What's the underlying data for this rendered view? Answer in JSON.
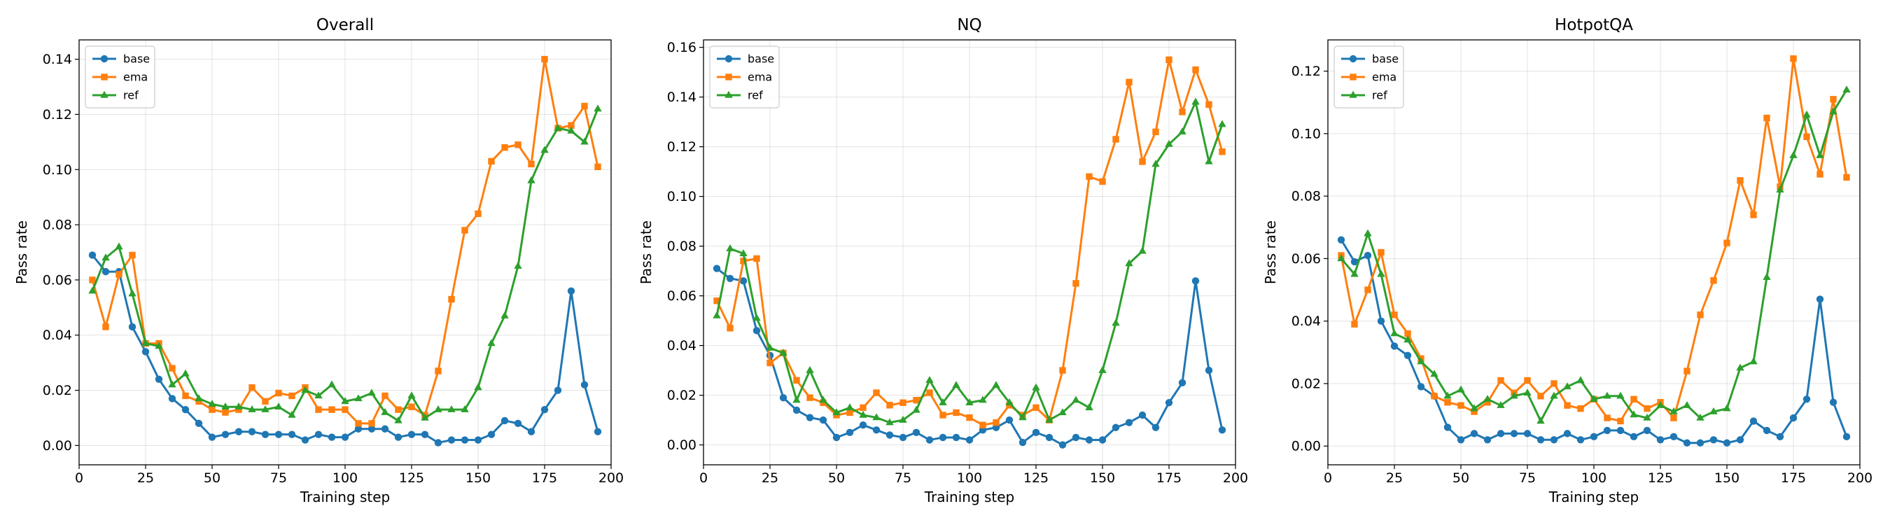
{
  "colors": {
    "base": "#1f77b4",
    "ema": "#ff7f0e",
    "ref": "#2ca02c",
    "grid": "#b0b0b0"
  },
  "chart_data": [
    {
      "type": "line",
      "title": "Overall",
      "xlabel": "Training step",
      "ylabel": "Pass rate",
      "xlim": [
        0,
        200
      ],
      "ylim": [
        -0.007,
        0.147
      ],
      "xticks": [
        0,
        25,
        50,
        75,
        100,
        125,
        150,
        175,
        200
      ],
      "yticks": [
        0.0,
        0.02,
        0.04,
        0.06,
        0.08,
        0.1,
        0.12,
        0.14
      ],
      "grid": true,
      "legend": "top-left",
      "x": [
        5,
        10,
        15,
        20,
        25,
        30,
        35,
        40,
        45,
        50,
        55,
        60,
        65,
        70,
        75,
        80,
        85,
        90,
        95,
        100,
        105,
        110,
        115,
        120,
        125,
        130,
        135,
        140,
        145,
        150,
        155,
        160,
        165,
        170,
        175,
        180,
        185,
        190,
        195
      ],
      "series": [
        {
          "name": "base",
          "marker": "circle",
          "values": [
            0.069,
            0.063,
            0.063,
            0.043,
            0.034,
            0.024,
            0.017,
            0.013,
            0.008,
            0.003,
            0.004,
            0.005,
            0.005,
            0.004,
            0.004,
            0.004,
            0.002,
            0.004,
            0.003,
            0.003,
            0.006,
            0.006,
            0.006,
            0.003,
            0.004,
            0.004,
            0.001,
            0.002,
            0.002,
            0.002,
            0.004,
            0.009,
            0.008,
            0.005,
            0.013,
            0.02,
            0.056,
            0.022,
            0.005
          ]
        },
        {
          "name": "ema",
          "marker": "square",
          "values": [
            0.06,
            0.043,
            0.062,
            0.069,
            0.037,
            0.037,
            0.028,
            0.018,
            0.016,
            0.013,
            0.012,
            0.013,
            0.021,
            0.016,
            0.019,
            0.018,
            0.021,
            0.013,
            0.013,
            0.013,
            0.008,
            0.008,
            0.018,
            0.013,
            0.014,
            0.011,
            0.027,
            0.053,
            0.078,
            0.084,
            0.103,
            0.108,
            0.109,
            0.102,
            0.14,
            0.115,
            0.116,
            0.123,
            0.101
          ]
        },
        {
          "name": "ref",
          "marker": "triangle",
          "values": [
            0.056,
            0.068,
            0.072,
            0.055,
            0.037,
            0.036,
            0.022,
            0.026,
            0.017,
            0.015,
            0.014,
            0.014,
            0.013,
            0.013,
            0.014,
            0.011,
            0.02,
            0.018,
            0.022,
            0.016,
            0.017,
            0.019,
            0.012,
            0.009,
            0.018,
            0.01,
            0.013,
            0.013,
            0.013,
            0.021,
            0.037,
            0.047,
            0.065,
            0.096,
            0.107,
            0.115,
            0.114,
            0.11,
            0.122
          ]
        }
      ]
    },
    {
      "type": "line",
      "title": "NQ",
      "xlabel": "Training step",
      "ylabel": "Pass rate",
      "xlim": [
        0,
        200
      ],
      "ylim": [
        -0.008,
        0.163
      ],
      "xticks": [
        0,
        25,
        50,
        75,
        100,
        125,
        150,
        175,
        200
      ],
      "yticks": [
        0.0,
        0.02,
        0.04,
        0.06,
        0.08,
        0.1,
        0.12,
        0.14,
        0.16
      ],
      "grid": true,
      "legend": "top-left",
      "x": [
        5,
        10,
        15,
        20,
        25,
        30,
        35,
        40,
        45,
        50,
        55,
        60,
        65,
        70,
        75,
        80,
        85,
        90,
        95,
        100,
        105,
        110,
        115,
        120,
        125,
        130,
        135,
        140,
        145,
        150,
        155,
        160,
        165,
        170,
        175,
        180,
        185,
        190,
        195
      ],
      "series": [
        {
          "name": "base",
          "marker": "circle",
          "values": [
            0.071,
            0.067,
            0.066,
            0.046,
            0.036,
            0.019,
            0.014,
            0.011,
            0.01,
            0.003,
            0.005,
            0.008,
            0.006,
            0.004,
            0.003,
            0.005,
            0.002,
            0.003,
            0.003,
            0.002,
            0.006,
            0.007,
            0.01,
            0.001,
            0.005,
            0.003,
            0.0,
            0.003,
            0.002,
            0.002,
            0.007,
            0.009,
            0.012,
            0.007,
            0.017,
            0.025,
            0.066,
            0.03,
            0.006
          ]
        },
        {
          "name": "ema",
          "marker": "square",
          "values": [
            0.058,
            0.047,
            0.074,
            0.075,
            0.033,
            0.037,
            0.026,
            0.019,
            0.017,
            0.012,
            0.013,
            0.015,
            0.021,
            0.016,
            0.017,
            0.018,
            0.021,
            0.012,
            0.013,
            0.011,
            0.008,
            0.009,
            0.016,
            0.012,
            0.015,
            0.01,
            0.03,
            0.065,
            0.108,
            0.106,
            0.123,
            0.146,
            0.114,
            0.126,
            0.155,
            0.134,
            0.151,
            0.137,
            0.118
          ]
        },
        {
          "name": "ref",
          "marker": "triangle",
          "values": [
            0.052,
            0.079,
            0.077,
            0.051,
            0.039,
            0.037,
            0.018,
            0.03,
            0.018,
            0.013,
            0.015,
            0.012,
            0.011,
            0.009,
            0.01,
            0.014,
            0.026,
            0.017,
            0.024,
            0.017,
            0.018,
            0.024,
            0.017,
            0.011,
            0.023,
            0.01,
            0.013,
            0.018,
            0.015,
            0.03,
            0.049,
            0.073,
            0.078,
            0.113,
            0.121,
            0.126,
            0.138,
            0.114,
            0.129
          ]
        }
      ]
    },
    {
      "type": "line",
      "title": "HotpotQA",
      "xlabel": "Training step",
      "ylabel": "Pass rate",
      "xlim": [
        0,
        200
      ],
      "ylim": [
        -0.006,
        0.13
      ],
      "xticks": [
        0,
        25,
        50,
        75,
        100,
        125,
        150,
        175,
        200
      ],
      "yticks": [
        0.0,
        0.02,
        0.04,
        0.06,
        0.08,
        0.1,
        0.12
      ],
      "grid": true,
      "legend": "top-left",
      "x": [
        5,
        10,
        15,
        20,
        25,
        30,
        35,
        40,
        45,
        50,
        55,
        60,
        65,
        70,
        75,
        80,
        85,
        90,
        95,
        100,
        105,
        110,
        115,
        120,
        125,
        130,
        135,
        140,
        145,
        150,
        155,
        160,
        165,
        170,
        175,
        180,
        185,
        190,
        195
      ],
      "series": [
        {
          "name": "base",
          "marker": "circle",
          "values": [
            0.066,
            0.059,
            0.061,
            0.04,
            0.032,
            0.029,
            0.019,
            0.016,
            0.006,
            0.002,
            0.004,
            0.002,
            0.004,
            0.004,
            0.004,
            0.002,
            0.002,
            0.004,
            0.002,
            0.003,
            0.005,
            0.005,
            0.003,
            0.005,
            0.002,
            0.003,
            0.001,
            0.001,
            0.002,
            0.001,
            0.002,
            0.008,
            0.005,
            0.003,
            0.009,
            0.015,
            0.047,
            0.014,
            0.003
          ]
        },
        {
          "name": "ema",
          "marker": "square",
          "values": [
            0.061,
            0.039,
            0.05,
            0.062,
            0.042,
            0.036,
            0.028,
            0.016,
            0.014,
            0.013,
            0.011,
            0.014,
            0.021,
            0.017,
            0.021,
            0.016,
            0.02,
            0.013,
            0.012,
            0.015,
            0.009,
            0.008,
            0.015,
            0.012,
            0.014,
            0.009,
            0.024,
            0.042,
            0.053,
            0.065,
            0.085,
            0.074,
            0.105,
            0.083,
            0.124,
            0.099,
            0.087,
            0.111,
            0.086
          ]
        },
        {
          "name": "ref",
          "marker": "triangle",
          "values": [
            0.06,
            0.055,
            0.068,
            0.055,
            0.036,
            0.034,
            0.027,
            0.023,
            0.016,
            0.018,
            0.012,
            0.015,
            0.013,
            0.016,
            0.017,
            0.008,
            0.016,
            0.019,
            0.021,
            0.015,
            0.016,
            0.016,
            0.01,
            0.009,
            0.013,
            0.011,
            0.013,
            0.009,
            0.011,
            0.012,
            0.025,
            0.027,
            0.054,
            0.082,
            0.093,
            0.106,
            0.093,
            0.107,
            0.114
          ]
        }
      ]
    }
  ]
}
